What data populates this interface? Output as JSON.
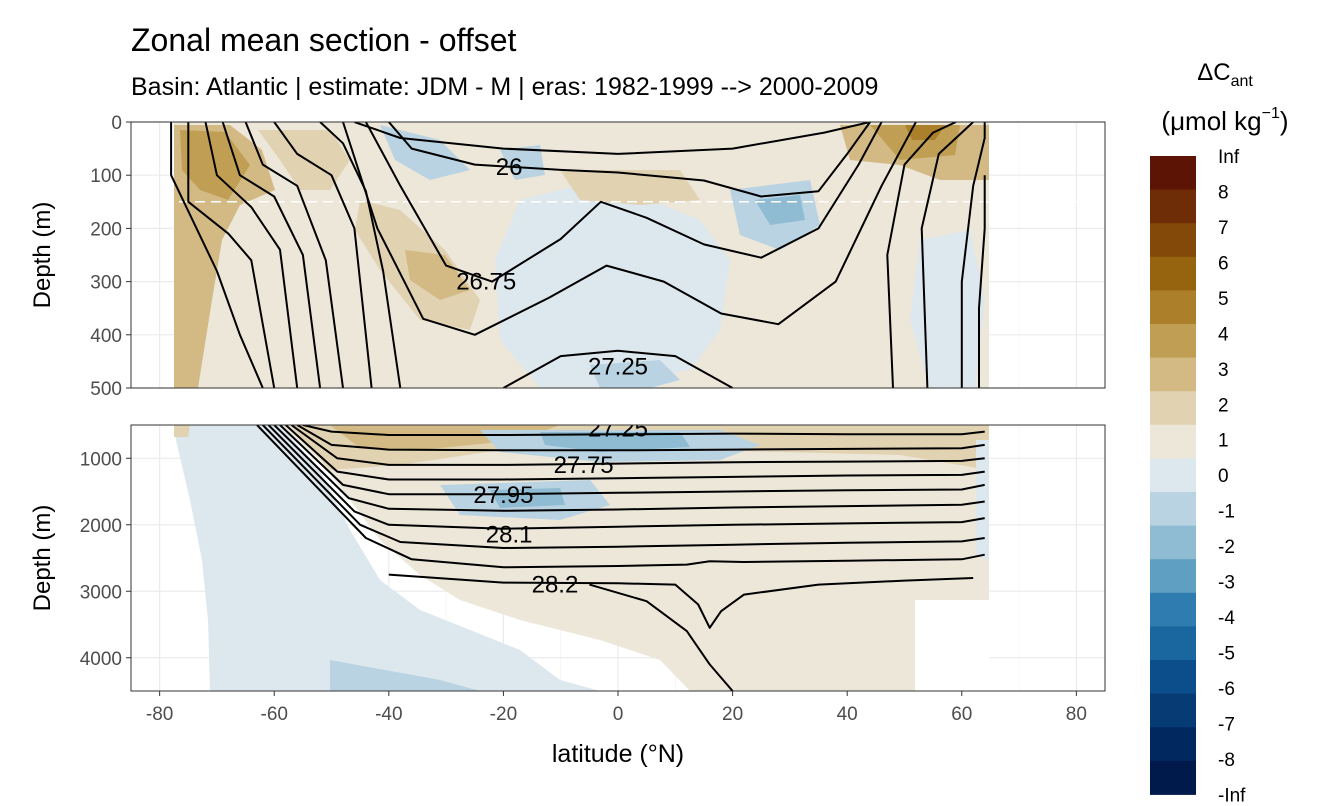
{
  "chart_data": {
    "type": "heatmap",
    "title": "Zonal mean section - offset",
    "subtitle": "Basin: Atlantic | estimate: JDM - M | eras: 1982-1999 --> 2000-2009",
    "xlabel": "latitude (°N)",
    "xlim": [
      -85,
      85
    ],
    "x_ticks": [
      "-80",
      "-60",
      "-40",
      "-20",
      "0",
      "20",
      "40",
      "60",
      "80"
    ],
    "x_tick_values": [
      -80,
      -60,
      -40,
      -20,
      0,
      20,
      40,
      60,
      80
    ],
    "grid": true,
    "legend_position": "right",
    "legend_title": "ΔC",
    "legend_title_sub": "ant",
    "legend_unit_prefix": "(μmol kg",
    "legend_unit_sup": "−1",
    "legend_unit_suffix": ")",
    "legend_labels": [
      "Inf",
      "8",
      "7",
      "6",
      "5",
      "4",
      "3",
      "2",
      "1",
      "0",
      "-1",
      "-2",
      "-3",
      "-4",
      "-5",
      "-6",
      "-7",
      "-8",
      "-Inf"
    ],
    "legend_colors": [
      "#5c1505",
      "#6e2c07",
      "#824909",
      "#96630f",
      "#ac7f2a",
      "#c09f55",
      "#d3b983",
      "#e1d2b1",
      "#ede7da",
      "#dde7ee",
      "#b9d3e2",
      "#8fbcd3",
      "#5f9fc2",
      "#2f7db0",
      "#1a669f",
      "#0c4e8b",
      "#063b74",
      "#02295f",
      "#001a4c"
    ],
    "panels": [
      {
        "ylabel": "Depth (m)",
        "ylim": [
          0,
          500
        ],
        "y_ticks": [
          "0",
          "100",
          "200",
          "300",
          "400",
          "500"
        ],
        "y_tick_values": [
          0,
          100,
          200,
          300,
          400,
          500
        ],
        "reference_depth": 150,
        "contour_labels": [
          {
            "text": "26",
            "lat": -19,
            "depth": 85
          },
          {
            "text": "26.75",
            "lat": -23,
            "depth": 300
          },
          {
            "text": "27.25",
            "lat": 0,
            "depth": 460
          }
        ],
        "isopycnals": [
          [
            [
              -78,
              0
            ],
            [
              -78,
              100
            ],
            [
              -70,
              280
            ],
            [
              -66,
              400
            ],
            [
              -62,
              500
            ]
          ],
          [
            [
              -75,
              0
            ],
            [
              -75,
              150
            ],
            [
              -68,
              210
            ],
            [
              -64,
              260
            ],
            [
              -60,
              500
            ]
          ],
          [
            [
              -72,
              0
            ],
            [
              -70,
              100
            ],
            [
              -64,
              160
            ],
            [
              -59,
              240
            ],
            [
              -56,
              500
            ]
          ],
          [
            [
              -69,
              0
            ],
            [
              -66,
              100
            ],
            [
              -60,
              140
            ],
            [
              -55,
              250
            ],
            [
              -52,
              500
            ]
          ],
          [
            [
              -65,
              0
            ],
            [
              -62,
              80
            ],
            [
              -56,
              120
            ],
            [
              -51,
              260
            ],
            [
              -48,
              500
            ]
          ],
          [
            [
              -60,
              0
            ],
            [
              -56,
              60
            ],
            [
              -50,
              100
            ],
            [
              -46,
              200
            ],
            [
              -43,
              500
            ]
          ],
          [
            [
              -52,
              0
            ],
            [
              -48,
              40
            ],
            [
              -44,
              130
            ],
            [
              -41,
              280
            ],
            [
              -38,
              500
            ]
          ],
          [
            [
              -46,
              0
            ],
            [
              -38,
              30
            ],
            [
              -20,
              50
            ],
            [
              0,
              60
            ],
            [
              20,
              50
            ],
            [
              36,
              20
            ],
            [
              44,
              0
            ]
          ],
          [
            [
              -40,
              0
            ],
            [
              -36,
              50
            ],
            [
              -25,
              80
            ],
            [
              -10,
              90
            ],
            [
              0,
              95
            ],
            [
              15,
              110
            ],
            [
              25,
              140
            ],
            [
              35,
              130
            ],
            [
              40,
              60
            ],
            [
              44,
              0
            ]
          ],
          [
            [
              -44,
              0
            ],
            [
              -38,
              120
            ],
            [
              -30,
              270
            ],
            [
              -22,
              300
            ],
            [
              -10,
              220
            ],
            [
              -3,
              150
            ],
            [
              5,
              180
            ],
            [
              15,
              230
            ],
            [
              25,
              255
            ],
            [
              35,
              200
            ],
            [
              42,
              80
            ],
            [
              46,
              0
            ]
          ],
          [
            [
              -48,
              0
            ],
            [
              -42,
              200
            ],
            [
              -34,
              370
            ],
            [
              -25,
              400
            ],
            [
              -12,
              330
            ],
            [
              -2,
              270
            ],
            [
              8,
              300
            ],
            [
              18,
              360
            ],
            [
              28,
              380
            ],
            [
              38,
              300
            ],
            [
              46,
              120
            ],
            [
              52,
              0
            ]
          ],
          [
            [
              -20,
              500
            ],
            [
              -10,
              440
            ],
            [
              0,
              430
            ],
            [
              10,
              440
            ],
            [
              20,
              500
            ]
          ],
          [
            [
              48,
              500
            ],
            [
              47,
              250
            ],
            [
              50,
              80
            ],
            [
              55,
              20
            ],
            [
              59,
              0
            ]
          ],
          [
            [
              54,
              500
            ],
            [
              53,
              200
            ],
            [
              56,
              60
            ],
            [
              60,
              20
            ],
            [
              62,
              0
            ]
          ],
          [
            [
              60,
              500
            ],
            [
              60,
              300
            ],
            [
              62,
              120
            ],
            [
              64,
              30
            ],
            [
              64,
              0
            ]
          ],
          [
            [
              63,
              500
            ],
            [
              63,
              350
            ],
            [
              64,
              200
            ],
            [
              64,
              100
            ]
          ]
        ]
      },
      {
        "ylabel": "Depth (m)",
        "ylim": [
          500,
          4500
        ],
        "y_ticks": [
          "1000",
          "2000",
          "3000",
          "4000"
        ],
        "y_tick_values": [
          1000,
          2000,
          3000,
          4000
        ],
        "contour_labels": [
          {
            "text": "27.25",
            "lat": 0,
            "depth": 550
          },
          {
            "text": "27.75",
            "lat": -6,
            "depth": 1100
          },
          {
            "text": "27.95",
            "lat": -20,
            "depth": 1550
          },
          {
            "text": "28.1",
            "lat": -19,
            "depth": 2150
          },
          {
            "text": "28.2",
            "lat": -11,
            "depth": 2900
          }
        ],
        "isopycnals": [
          [
            [
              -55,
              500
            ],
            [
              -50,
              600
            ],
            [
              -40,
              650
            ],
            [
              -20,
              650
            ],
            [
              0,
              640
            ],
            [
              20,
              630
            ],
            [
              40,
              640
            ],
            [
              60,
              640
            ],
            [
              64,
              600
            ]
          ],
          [
            [
              -56,
              500
            ],
            [
              -50,
              800
            ],
            [
              -40,
              870
            ],
            [
              -20,
              880
            ],
            [
              0,
              880
            ],
            [
              20,
              870
            ],
            [
              40,
              860
            ],
            [
              60,
              850
            ],
            [
              64,
              800
            ]
          ],
          [
            [
              -57,
              500
            ],
            [
              -49,
              1000
            ],
            [
              -40,
              1100
            ],
            [
              -20,
              1100
            ],
            [
              0,
              1080
            ],
            [
              20,
              1060
            ],
            [
              40,
              1050
            ],
            [
              60,
              1040
            ],
            [
              64,
              1000
            ]
          ],
          [
            [
              -58,
              500
            ],
            [
              -49,
              1200
            ],
            [
              -40,
              1320
            ],
            [
              -20,
              1320
            ],
            [
              0,
              1300
            ],
            [
              20,
              1280
            ],
            [
              40,
              1260
            ],
            [
              60,
              1250
            ],
            [
              64,
              1200
            ]
          ],
          [
            [
              -59,
              500
            ],
            [
              -48,
              1400
            ],
            [
              -40,
              1540
            ],
            [
              -20,
              1540
            ],
            [
              0,
              1520
            ],
            [
              20,
              1500
            ],
            [
              40,
              1480
            ],
            [
              60,
              1470
            ],
            [
              64,
              1400
            ]
          ],
          [
            [
              -60,
              500
            ],
            [
              -47,
              1600
            ],
            [
              -40,
              1760
            ],
            [
              -20,
              1790
            ],
            [
              0,
              1770
            ],
            [
              20,
              1740
            ],
            [
              40,
              1720
            ],
            [
              60,
              1700
            ],
            [
              64,
              1650
            ]
          ],
          [
            [
              -61,
              500
            ],
            [
              -46,
              1800
            ],
            [
              -40,
              2000
            ],
            [
              -20,
              2060
            ],
            [
              0,
              2030
            ],
            [
              20,
              2000
            ],
            [
              40,
              1980
            ],
            [
              60,
              1960
            ],
            [
              64,
              1900
            ]
          ],
          [
            [
              -62,
              500
            ],
            [
              -45,
              2000
            ],
            [
              -38,
              2260
            ],
            [
              -20,
              2350
            ],
            [
              0,
              2330
            ],
            [
              20,
              2300
            ],
            [
              40,
              2270
            ],
            [
              60,
              2250
            ],
            [
              64,
              2200
            ]
          ],
          [
            [
              -63,
              500
            ],
            [
              -44,
              2200
            ],
            [
              -36,
              2520
            ],
            [
              -20,
              2640
            ],
            [
              0,
              2620
            ],
            [
              12,
              2600
            ],
            [
              16,
              2550
            ],
            [
              22,
              2560
            ],
            [
              40,
              2540
            ],
            [
              60,
              2520
            ],
            [
              64,
              2450
            ]
          ],
          [
            [
              -40,
              2750
            ],
            [
              -20,
              2870
            ],
            [
              0,
              2880
            ],
            [
              10,
              2900
            ],
            [
              14,
              3200
            ],
            [
              16,
              3550
            ],
            [
              18,
              3300
            ],
            [
              22,
              3050
            ],
            [
              35,
              2900
            ],
            [
              50,
              2840
            ],
            [
              62,
              2800
            ]
          ],
          [
            [
              -5,
              2900
            ],
            [
              5,
              3150
            ],
            [
              12,
              3600
            ],
            [
              16,
              4100
            ],
            [
              20,
              4500
            ]
          ]
        ]
      }
    ]
  }
}
